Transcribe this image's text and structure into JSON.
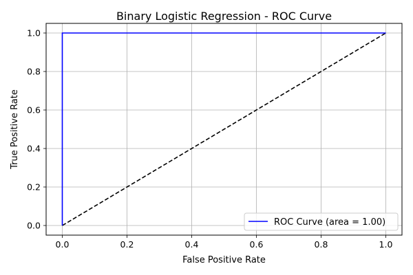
{
  "chart_data": {
    "type": "line",
    "title": "Binary Logistic Regression - ROC Curve",
    "xlabel": "False Positive Rate",
    "ylabel": "True Positive Rate",
    "xlim": [
      -0.05,
      1.05
    ],
    "ylim": [
      -0.05,
      1.05
    ],
    "xticks": [
      0.0,
      0.2,
      0.4,
      0.6,
      0.8,
      1.0
    ],
    "yticks": [
      0.0,
      0.2,
      0.4,
      0.6,
      0.8,
      1.0
    ],
    "xtick_labels": [
      "0.0",
      "0.2",
      "0.4",
      "0.6",
      "0.8",
      "1.0"
    ],
    "ytick_labels": [
      "0.0",
      "0.2",
      "0.4",
      "0.6",
      "0.8",
      "1.0"
    ],
    "grid": true,
    "legend_position": "bottom-right",
    "series": [
      {
        "name": "ROC Curve (area = 1.00)",
        "color": "#0000ff",
        "line_style": "solid",
        "x": [
          0.0,
          0.0,
          1.0
        ],
        "y": [
          0.0,
          1.0,
          1.0
        ]
      },
      {
        "color": "#000000",
        "line_style": "dashed",
        "x": [
          0.0,
          1.0
        ],
        "y": [
          0.0,
          1.0
        ]
      }
    ]
  }
}
